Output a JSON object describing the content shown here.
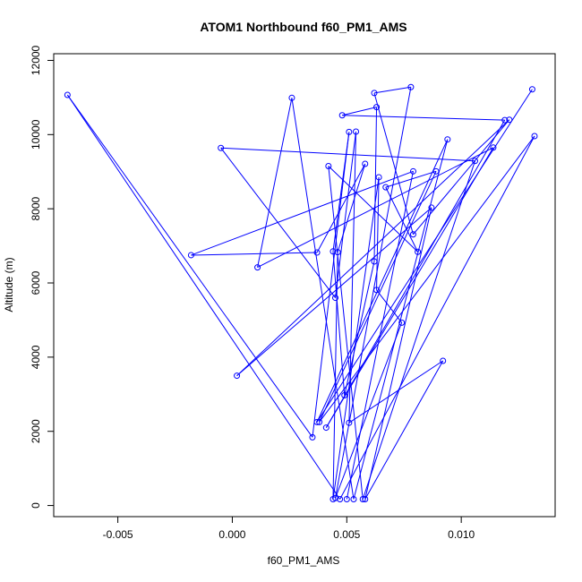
{
  "chart_data": {
    "type": "scatter",
    "title": "ATOM1 Northbound f60_PM1_AMS",
    "xlabel": "f60_PM1_AMS",
    "ylabel": "Altitude (m)",
    "xlim": [
      -0.0078,
      0.0141
    ],
    "ylim": [
      -300,
      12180
    ],
    "xticks": [
      -0.005,
      0.0,
      0.005,
      0.01
    ],
    "xtick_labels": [
      "-0.005",
      "0.000",
      "0.005",
      "0.010"
    ],
    "yticks": [
      0,
      2000,
      4000,
      6000,
      8000,
      10000,
      12000
    ],
    "ytick_labels": [
      "0",
      "2000",
      "4000",
      "6000",
      "8000",
      "10000",
      "12000"
    ],
    "grid": false,
    "legend": false,
    "colors": {
      "series": "#0000ff",
      "axis": "#000000",
      "background": "#ffffff"
    },
    "markers": "open circle",
    "connected": true,
    "series": [
      {
        "points": [
          [
            0.0131,
            11220
          ],
          [
            0.0037,
            2250
          ],
          [
            0.0094,
            9870
          ],
          [
            0.0053,
            170
          ],
          [
            0.0026,
            10990
          ],
          [
            0.0011,
            6420
          ],
          [
            0.0114,
            9650
          ],
          [
            0.0041,
            2100
          ],
          [
            0.0119,
            10390
          ],
          [
            0.0048,
            10520
          ],
          [
            0.0063,
            10740
          ],
          [
            0.0062,
            6580
          ],
          [
            0.0049,
            2970
          ],
          [
            0.0044,
            6850
          ],
          [
            0.0051,
            10070
          ],
          [
            0.0035,
            1840
          ],
          [
            -0.0072,
            11070
          ],
          [
            0.0047,
            170
          ],
          [
            0.0132,
            9960
          ],
          [
            0.0038,
            2250
          ],
          [
            0.0089,
            9010
          ],
          [
            0.0067,
            8580
          ],
          [
            0.0081,
            6840
          ],
          [
            0.0042,
            9150
          ],
          [
            0.0057,
            170
          ],
          [
            0.0106,
            9290
          ],
          [
            -0.0005,
            9640
          ],
          [
            0.0045,
            5600
          ],
          [
            0.0054,
            10080
          ],
          [
            0.0051,
            2230
          ],
          [
            0.0092,
            3900
          ],
          [
            0.0058,
            170
          ],
          [
            0.0087,
            8030
          ],
          [
            0.0002,
            3500
          ],
          [
            0.0121,
            10400
          ],
          [
            0.0079,
            7310
          ],
          [
            0.0062,
            11120
          ],
          [
            0.0078,
            11280
          ],
          [
            0.0045,
            200
          ],
          [
            0.0074,
            4930
          ],
          [
            0.0063,
            5810
          ],
          [
            0.0064,
            8850
          ],
          [
            0.0044,
            170
          ],
          [
            0.0046,
            6830
          ],
          [
            0.0058,
            9210
          ],
          [
            0.0037,
            6820
          ],
          [
            -0.0018,
            6750
          ],
          [
            0.0079,
            9010
          ],
          [
            0.005,
            170
          ]
        ]
      }
    ]
  }
}
